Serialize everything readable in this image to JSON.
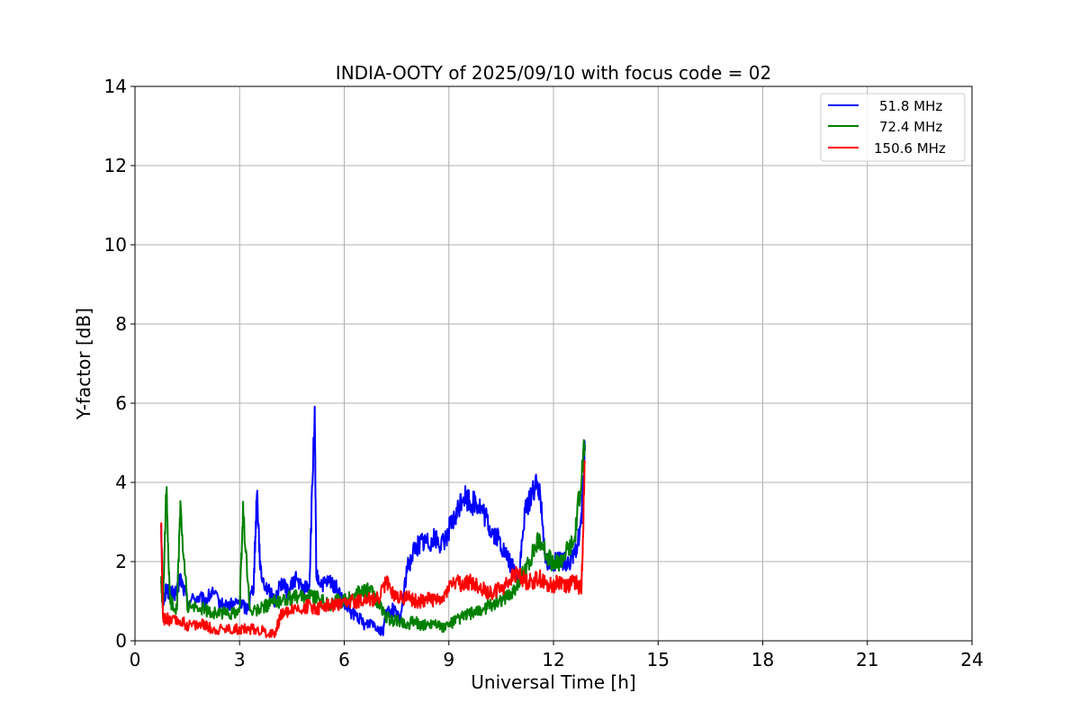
{
  "chart_data": {
    "type": "line",
    "title": "INDIA-OOTY of 2025/09/10 with focus code = 02",
    "xlabel": "Universal Time [h]",
    "ylabel": "Y-factor [dB]",
    "xlim": [
      0,
      24
    ],
    "ylim": [
      0,
      14
    ],
    "xticks": [
      0,
      3,
      6,
      9,
      12,
      15,
      18,
      21,
      24
    ],
    "yticks": [
      0,
      2,
      4,
      6,
      8,
      10,
      12,
      14
    ],
    "grid": true,
    "legend_position": "top-right",
    "series": [
      {
        "name": "51.8 MHz",
        "color": "#0000ff",
        "x": [
          0.75,
          0.8,
          0.9,
          1.0,
          1.2,
          1.3,
          1.5,
          1.8,
          2.0,
          2.2,
          2.5,
          2.8,
          3.0,
          3.2,
          3.4,
          3.5,
          3.6,
          3.8,
          4.0,
          4.2,
          4.4,
          4.6,
          4.8,
          5.0,
          5.15,
          5.2,
          5.4,
          5.6,
          5.8,
          6.0,
          6.2,
          6.4,
          6.6,
          6.8,
          7.0,
          7.1,
          7.2,
          7.4,
          7.6,
          7.8,
          8.0,
          8.2,
          8.4,
          8.6,
          8.8,
          9.0,
          9.2,
          9.4,
          9.6,
          9.8,
          10.0,
          10.2,
          10.4,
          10.6,
          10.8,
          11.0,
          11.2,
          11.4,
          11.6,
          11.8,
          12.0,
          12.2,
          12.4,
          12.6,
          12.8,
          12.9
        ],
        "y": [
          3.0,
          1.0,
          1.3,
          1.2,
          1.2,
          1.6,
          1.0,
          1.1,
          1.0,
          1.2,
          0.9,
          0.9,
          1.0,
          0.8,
          1.4,
          3.8,
          1.7,
          1.3,
          1.0,
          1.5,
          1.2,
          1.6,
          1.3,
          1.4,
          5.8,
          1.6,
          1.4,
          1.5,
          1.3,
          0.9,
          0.7,
          0.6,
          0.4,
          0.5,
          0.3,
          0.2,
          0.7,
          0.8,
          0.5,
          1.8,
          2.3,
          2.5,
          2.5,
          2.6,
          2.4,
          2.8,
          3.1,
          3.7,
          3.5,
          3.5,
          3.2,
          2.8,
          2.6,
          2.2,
          1.9,
          1.6,
          3.3,
          3.8,
          3.9,
          1.9,
          2.0,
          2.0,
          2.0,
          2.1,
          3.0,
          4.8
        ]
      },
      {
        "name": "72.4 MHz",
        "color": "#008000",
        "x": [
          0.75,
          0.8,
          0.9,
          1.0,
          1.2,
          1.3,
          1.5,
          1.8,
          2.0,
          2.2,
          2.5,
          2.8,
          3.0,
          3.1,
          3.3,
          3.6,
          3.8,
          4.0,
          4.2,
          4.5,
          4.8,
          5.0,
          5.2,
          5.4,
          5.6,
          5.8,
          6.0,
          6.2,
          6.4,
          6.6,
          6.8,
          7.0,
          7.2,
          7.4,
          7.6,
          7.8,
          8.0,
          8.2,
          8.4,
          8.6,
          8.8,
          9.0,
          9.2,
          9.4,
          9.6,
          9.8,
          10.0,
          10.2,
          10.4,
          10.6,
          10.8,
          11.0,
          11.2,
          11.4,
          11.6,
          11.8,
          12.0,
          12.2,
          12.4,
          12.6,
          12.8,
          12.9
        ],
        "y": [
          1.5,
          0.8,
          3.8,
          1.0,
          0.8,
          3.3,
          0.9,
          0.8,
          0.8,
          0.7,
          0.7,
          0.7,
          0.8,
          3.3,
          0.7,
          0.8,
          0.9,
          1.0,
          1.0,
          1.1,
          1.1,
          1.2,
          1.1,
          1.0,
          0.9,
          1.0,
          1.0,
          1.1,
          1.2,
          1.3,
          1.2,
          0.9,
          0.6,
          0.5,
          0.5,
          0.4,
          0.5,
          0.4,
          0.4,
          0.5,
          0.3,
          0.4,
          0.5,
          0.6,
          0.7,
          0.7,
          0.8,
          0.9,
          1.0,
          1.1,
          1.2,
          1.5,
          1.8,
          2.2,
          2.6,
          2.2,
          1.9,
          2.0,
          2.3,
          2.5,
          4.2,
          4.9
        ]
      },
      {
        "name": "150.6 MHz",
        "color": "#ff0000",
        "x": [
          0.75,
          0.8,
          0.9,
          1.0,
          1.3,
          1.5,
          1.8,
          2.0,
          2.2,
          2.5,
          2.8,
          3.0,
          3.2,
          3.5,
          3.8,
          4.0,
          4.1,
          4.2,
          4.5,
          4.8,
          5.0,
          5.2,
          5.4,
          5.6,
          5.8,
          6.0,
          6.2,
          6.4,
          6.6,
          6.8,
          7.0,
          7.2,
          7.4,
          7.6,
          7.8,
          8.0,
          8.2,
          8.4,
          8.6,
          8.8,
          9.0,
          9.2,
          9.4,
          9.6,
          9.8,
          10.0,
          10.2,
          10.4,
          10.6,
          10.8,
          11.0,
          11.2,
          11.4,
          11.6,
          11.8,
          12.0,
          12.2,
          12.4,
          12.6,
          12.8,
          12.9
        ],
        "y": [
          3.1,
          0.5,
          0.6,
          0.5,
          0.5,
          0.4,
          0.4,
          0.4,
          0.3,
          0.3,
          0.3,
          0.3,
          0.3,
          0.3,
          0.2,
          0.2,
          0.4,
          0.7,
          0.8,
          0.8,
          0.9,
          0.8,
          0.9,
          0.9,
          0.9,
          0.9,
          1.0,
          1.0,
          1.1,
          1.0,
          1.1,
          1.5,
          1.2,
          1.1,
          1.1,
          1.0,
          1.0,
          1.1,
          1.0,
          1.0,
          1.4,
          1.5,
          1.4,
          1.5,
          1.4,
          1.3,
          1.2,
          1.3,
          1.4,
          1.6,
          1.7,
          1.5,
          1.5,
          1.6,
          1.4,
          1.4,
          1.5,
          1.4,
          1.5,
          1.3,
          4.5
        ]
      }
    ]
  }
}
